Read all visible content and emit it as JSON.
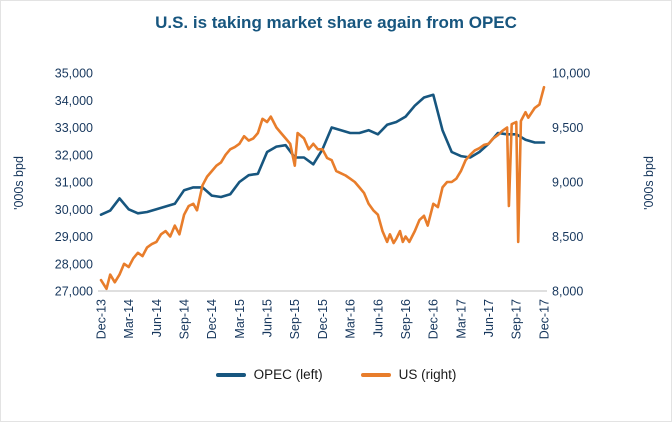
{
  "chart_data": {
    "type": "line",
    "title": "U.S. is taking market share again from OPEC",
    "grid": false,
    "legend_position": "bottom",
    "x_range": [
      0,
      48
    ],
    "x_tick_positions": [
      0,
      3,
      6,
      9,
      12,
      15,
      18,
      21,
      24,
      27,
      30,
      33,
      36,
      39,
      42,
      45,
      48
    ],
    "x_tick_labels": [
      "Dec-13",
      "Mar-14",
      "Jun-14",
      "Sep-14",
      "Dec-14",
      "Mar-15",
      "Jun-15",
      "Sep-15",
      "Dec-15",
      "Mar-16",
      "Jun-16",
      "Sep-16",
      "Dec-16",
      "Mar-17",
      "Jun-17",
      "Sep-17",
      "Dec-17"
    ],
    "left_axis": {
      "label": "'000s bpd",
      "min": 27000,
      "max": 35000,
      "step": 1000
    },
    "right_axis": {
      "label": "'000s bpd",
      "min": 8000,
      "max": 10000,
      "step": 500
    },
    "series": [
      {
        "name": "OPEC (left)",
        "axis": "left",
        "color": "#17567F",
        "data_name": "opec-line",
        "x_start": 0,
        "x_step": 1,
        "values": [
          29800,
          29950,
          30400,
          30000,
          29850,
          29900,
          30000,
          30100,
          30200,
          30700,
          30800,
          30800,
          30500,
          30450,
          30550,
          31000,
          31250,
          31300,
          32100,
          32300,
          32350,
          31900,
          31900,
          31650,
          32200,
          33000,
          32900,
          32800,
          32800,
          32900,
          32750,
          33100,
          33200,
          33400,
          33800,
          34100,
          34200,
          32900,
          32100,
          31950,
          31900,
          32100,
          32400,
          32800,
          32750,
          32750,
          32550,
          32450,
          32450
        ]
      },
      {
        "name": "US (right)",
        "axis": "right",
        "color": "#E87D2B",
        "data_name": "us-line",
        "points": [
          [
            0,
            8100
          ],
          [
            0.6,
            8020
          ],
          [
            1,
            8150
          ],
          [
            1.5,
            8080
          ],
          [
            2,
            8150
          ],
          [
            2.5,
            8250
          ],
          [
            3,
            8220
          ],
          [
            3.5,
            8300
          ],
          [
            4,
            8350
          ],
          [
            4.5,
            8320
          ],
          [
            5,
            8400
          ],
          [
            5.5,
            8430
          ],
          [
            6,
            8450
          ],
          [
            6.5,
            8520
          ],
          [
            7,
            8550
          ],
          [
            7.5,
            8500
          ],
          [
            8,
            8600
          ],
          [
            8.5,
            8520
          ],
          [
            9,
            8700
          ],
          [
            9.5,
            8780
          ],
          [
            10,
            8800
          ],
          [
            10.4,
            8740
          ],
          [
            11,
            8970
          ],
          [
            11.5,
            9050
          ],
          [
            12,
            9100
          ],
          [
            12.5,
            9150
          ],
          [
            13,
            9180
          ],
          [
            13.5,
            9250
          ],
          [
            14,
            9300
          ],
          [
            14.5,
            9320
          ],
          [
            15,
            9350
          ],
          [
            15.5,
            9420
          ],
          [
            16,
            9380
          ],
          [
            16.5,
            9400
          ],
          [
            17,
            9450
          ],
          [
            17.5,
            9580
          ],
          [
            18,
            9550
          ],
          [
            18.4,
            9600
          ],
          [
            19,
            9500
          ],
          [
            19.5,
            9450
          ],
          [
            20,
            9400
          ],
          [
            20.5,
            9350
          ],
          [
            21,
            9150
          ],
          [
            21.3,
            9450
          ],
          [
            22,
            9400
          ],
          [
            22.5,
            9300
          ],
          [
            23,
            9350
          ],
          [
            23.5,
            9300
          ],
          [
            24,
            9300
          ],
          [
            24.5,
            9220
          ],
          [
            25,
            9200
          ],
          [
            25.5,
            9100
          ],
          [
            26,
            9080
          ],
          [
            26.5,
            9060
          ],
          [
            27,
            9030
          ],
          [
            27.5,
            9000
          ],
          [
            28,
            8950
          ],
          [
            28.5,
            8900
          ],
          [
            29,
            8800
          ],
          [
            29.5,
            8740
          ],
          [
            30,
            8700
          ],
          [
            30.5,
            8550
          ],
          [
            31,
            8450
          ],
          [
            31.3,
            8520
          ],
          [
            31.7,
            8440
          ],
          [
            32,
            8480
          ],
          [
            32.4,
            8550
          ],
          [
            32.7,
            8450
          ],
          [
            33,
            8500
          ],
          [
            33.4,
            8450
          ],
          [
            34,
            8550
          ],
          [
            34.5,
            8650
          ],
          [
            35,
            8690
          ],
          [
            35.4,
            8600
          ],
          [
            36,
            8800
          ],
          [
            36.5,
            8770
          ],
          [
            37,
            8950
          ],
          [
            37.5,
            9000
          ],
          [
            38,
            9000
          ],
          [
            38.5,
            9030
          ],
          [
            39,
            9100
          ],
          [
            39.5,
            9200
          ],
          [
            40,
            9250
          ],
          [
            40.5,
            9290
          ],
          [
            41,
            9310
          ],
          [
            41.5,
            9340
          ],
          [
            42,
            9350
          ],
          [
            42.5,
            9400
          ],
          [
            43,
            9430
          ],
          [
            43.5,
            9470
          ],
          [
            44,
            9500
          ],
          [
            44.2,
            8780
          ],
          [
            44.5,
            9530
          ],
          [
            45,
            9550
          ],
          [
            45.2,
            8450
          ],
          [
            45.5,
            9560
          ],
          [
            46,
            9640
          ],
          [
            46.3,
            9590
          ],
          [
            47,
            9680
          ],
          [
            47.5,
            9710
          ],
          [
            48,
            9870
          ]
        ]
      }
    ]
  }
}
